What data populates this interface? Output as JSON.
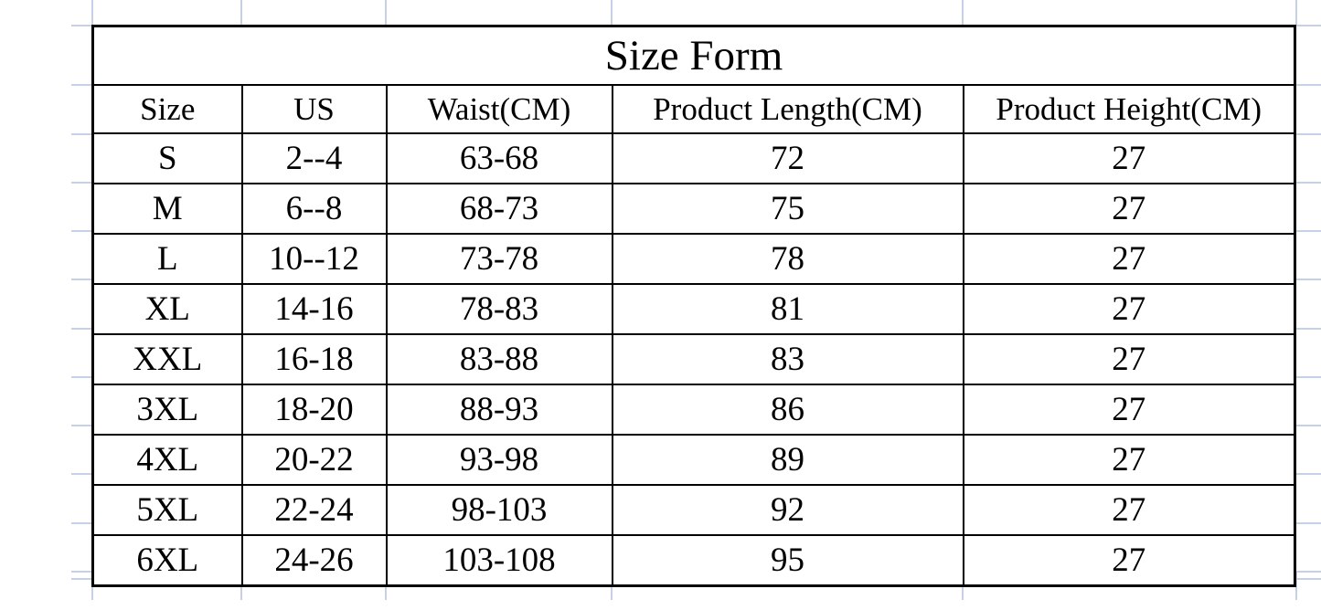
{
  "chart_data": {
    "type": "table",
    "title": "Size Form",
    "columns": [
      "Size",
      "US",
      "Waist(CM)",
      "Product Length(CM)",
      "Product Height(CM)"
    ],
    "rows": [
      [
        "S",
        "2--4",
        "63-68",
        "72",
        "27"
      ],
      [
        "M",
        "6--8",
        "68-73",
        "75",
        "27"
      ],
      [
        "L",
        "10--12",
        "73-78",
        "78",
        "27"
      ],
      [
        "XL",
        "14-16",
        "78-83",
        "81",
        "27"
      ],
      [
        "XXL",
        "16-18",
        "83-88",
        "83",
        "27"
      ],
      [
        "3XL",
        "18-20",
        "88-93",
        "86",
        "27"
      ],
      [
        "4XL",
        "20-22",
        "93-98",
        "89",
        "27"
      ],
      [
        "5XL",
        "22-24",
        "98-103",
        "92",
        "27"
      ],
      [
        "6XL",
        "24-26",
        "103-108",
        "95",
        "27"
      ]
    ],
    "layout_hints": {
      "grid": "faint spreadsheet gridlines visible outside table edges",
      "title_position": "merged top row, centered",
      "legend": "none"
    }
  },
  "colors": {
    "background": "#ffffff",
    "table_border": "#000000",
    "text": "#000000",
    "spreadsheet_grid": "#c6d1e8"
  }
}
